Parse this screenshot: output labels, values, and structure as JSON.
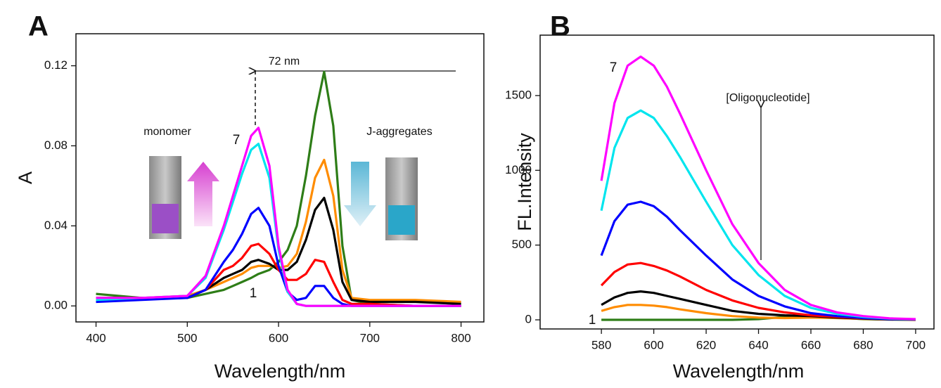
{
  "chart_data": [
    {
      "type": "line",
      "label": "A",
      "x_label": "Wavelength/nm",
      "y_label": "A",
      "annotations": [
        "72 nm",
        "monomer",
        "J-aggregates",
        "7",
        "1"
      ],
      "x": [
        400,
        450,
        500,
        520,
        540,
        550,
        560,
        570,
        578,
        590,
        600,
        610,
        620,
        630,
        640,
        650,
        660,
        670,
        680,
        700,
        750,
        800
      ],
      "xlim": [
        378,
        825
      ],
      "xticks": [
        400,
        500,
        600,
        700,
        800
      ],
      "ylim": [
        -0.008,
        0.136
      ],
      "yticks": [
        {
          "value": 0,
          "label": "0.00"
        },
        {
          "value": 0.04,
          "label": "0.04"
        },
        {
          "value": 0.08,
          "label": "0.08"
        },
        {
          "value": 0.12,
          "label": "0.12"
        }
      ],
      "series": [
        {
          "color": "#2e7d17",
          "values": [
            0.006,
            0.004,
            0.004,
            0.006,
            0.008,
            0.01,
            0.012,
            0.014,
            0.016,
            0.018,
            0.022,
            0.028,
            0.04,
            0.065,
            0.095,
            0.117,
            0.09,
            0.03,
            0.003,
            0.001,
            0.0,
            0.0
          ]
        },
        {
          "color": "#ff8c00",
          "values": [
            0.004,
            0.004,
            0.005,
            0.008,
            0.012,
            0.014,
            0.016,
            0.019,
            0.02,
            0.02,
            0.019,
            0.02,
            0.026,
            0.042,
            0.064,
            0.073,
            0.055,
            0.018,
            0.004,
            0.003,
            0.003,
            0.002
          ]
        },
        {
          "color": "#000000",
          "values": [
            0.004,
            0.004,
            0.004,
            0.008,
            0.014,
            0.016,
            0.018,
            0.022,
            0.023,
            0.021,
            0.018,
            0.018,
            0.022,
            0.033,
            0.048,
            0.054,
            0.038,
            0.012,
            0.003,
            0.002,
            0.002,
            0.001
          ]
        },
        {
          "color": "#ff0000",
          "values": [
            0.003,
            0.004,
            0.004,
            0.008,
            0.018,
            0.02,
            0.024,
            0.03,
            0.031,
            0.026,
            0.018,
            0.013,
            0.013,
            0.016,
            0.023,
            0.022,
            0.012,
            0.003,
            0.001,
            0.001,
            0.0,
            0.0
          ]
        },
        {
          "color": "#0000ff",
          "values": [
            0.002,
            0.003,
            0.004,
            0.008,
            0.022,
            0.028,
            0.036,
            0.046,
            0.049,
            0.04,
            0.02,
            0.007,
            0.003,
            0.004,
            0.01,
            0.01,
            0.004,
            0.001,
            0.0,
            0.0,
            0.0,
            0.0
          ]
        },
        {
          "color": "#00e5ee",
          "values": [
            0.003,
            0.004,
            0.005,
            0.014,
            0.038,
            0.052,
            0.066,
            0.078,
            0.081,
            0.064,
            0.028,
            0.007,
            0.001,
            0.0,
            0.0,
            0.0,
            0.0,
            0.0,
            0.0,
            0.0,
            0.0,
            0.0
          ]
        },
        {
          "color": "#ff00ff",
          "values": [
            0.004,
            0.004,
            0.005,
            0.015,
            0.04,
            0.055,
            0.07,
            0.085,
            0.089,
            0.07,
            0.03,
            0.008,
            0.001,
            0.0,
            0.0,
            0.0,
            0.0,
            0.0,
            0.0,
            0.0,
            0.0,
            0.0
          ]
        }
      ]
    },
    {
      "type": "line",
      "label": "B",
      "x_label": "Wavelength/nm",
      "y_label": "FL.Intensity",
      "annotations": [
        "[Oligonucleotide]",
        "7",
        "1"
      ],
      "x": [
        580,
        585,
        590,
        595,
        600,
        605,
        610,
        620,
        630,
        640,
        650,
        660,
        670,
        680,
        690,
        700
      ],
      "xlim": [
        556.6,
        707
      ],
      "xticks": [
        580,
        600,
        620,
        640,
        660,
        680,
        700
      ],
      "ylim": [
        -61,
        1904
      ],
      "yticks": [
        0,
        500,
        1000,
        1500
      ],
      "series": [
        {
          "color": "#2e7d17",
          "values": [
            0,
            0,
            0,
            0,
            0,
            0,
            0,
            0,
            0,
            5,
            20,
            25,
            15,
            5,
            2,
            0
          ]
        },
        {
          "color": "#ff8c00",
          "values": [
            60,
            85,
            100,
            100,
            95,
            85,
            70,
            45,
            25,
            15,
            12,
            15,
            12,
            6,
            3,
            1
          ]
        },
        {
          "color": "#000000",
          "values": [
            100,
            150,
            180,
            190,
            180,
            160,
            140,
            100,
            60,
            40,
            30,
            25,
            15,
            8,
            3,
            1
          ]
        },
        {
          "color": "#ff0000",
          "values": [
            230,
            320,
            370,
            380,
            360,
            330,
            290,
            200,
            130,
            80,
            50,
            30,
            20,
            10,
            5,
            2
          ]
        },
        {
          "color": "#0000ff",
          "values": [
            430,
            660,
            770,
            790,
            760,
            690,
            600,
            430,
            270,
            160,
            90,
            45,
            25,
            12,
            5,
            3
          ]
        },
        {
          "color": "#00e5ee",
          "values": [
            730,
            1150,
            1350,
            1400,
            1350,
            1230,
            1090,
            790,
            500,
            300,
            160,
            80,
            40,
            20,
            8,
            4
          ]
        },
        {
          "color": "#ff00ff",
          "values": [
            930,
            1450,
            1700,
            1760,
            1700,
            1560,
            1380,
            1000,
            640,
            380,
            200,
            100,
            50,
            25,
            10,
            5
          ]
        }
      ]
    }
  ]
}
